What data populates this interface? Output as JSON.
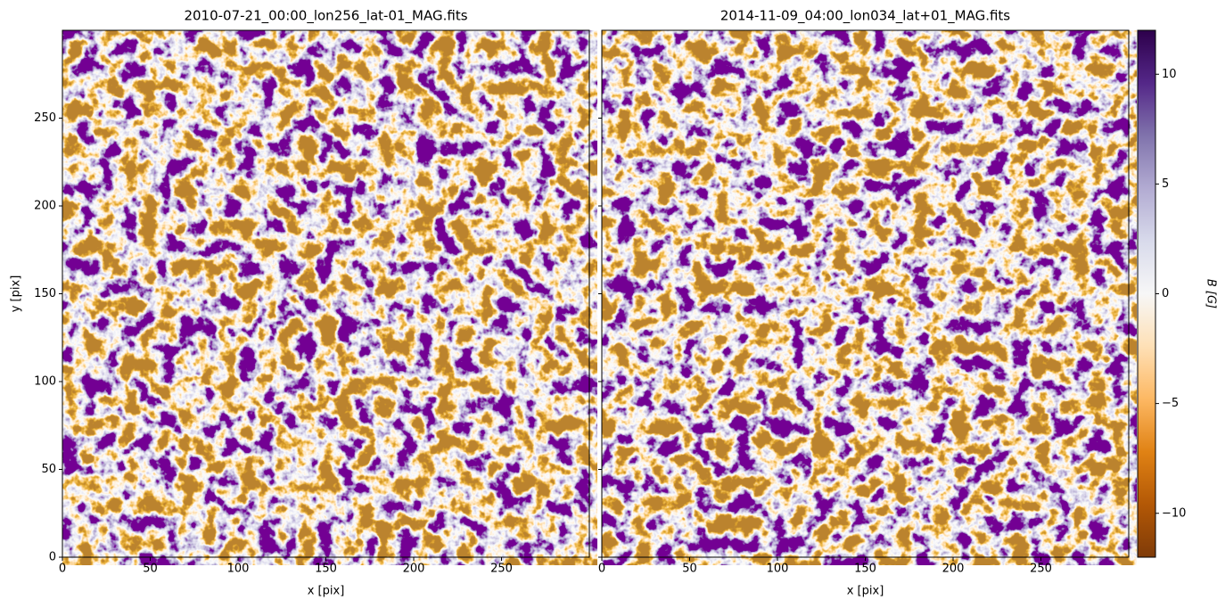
{
  "chart_data": [
    {
      "type": "heatmap",
      "title": "2010-07-21_00:00_lon256_lat-01_MAG.fits",
      "xlabel": "x [pix]",
      "ylabel": "y [pix]",
      "xlim": [
        0,
        300
      ],
      "ylim": [
        0,
        300
      ],
      "xticks": [
        0,
        50,
        100,
        150,
        200,
        250
      ],
      "yticks": [
        0,
        50,
        100,
        150,
        200,
        250
      ],
      "show_yticklabels": true
    },
    {
      "type": "heatmap",
      "title": "2014-11-09_04:00_lon034_lat+01_MAG.fits",
      "xlabel": "x [pix]",
      "xlim": [
        0,
        300
      ],
      "ylim": [
        0,
        300
      ],
      "xticks": [
        0,
        50,
        100,
        150,
        200,
        250
      ],
      "yticks": [
        0,
        50,
        100,
        150,
        200,
        250
      ],
      "show_yticklabels": false
    }
  ],
  "colorbar": {
    "label": "B [G]",
    "lim": [
      -12,
      12
    ],
    "ticks": [
      {
        "value": -10,
        "label": "−10"
      },
      {
        "value": -5,
        "label": "−5"
      },
      0,
      5,
      10
    ],
    "colormap": [
      "#7f3b08",
      "#b35806",
      "#e08214",
      "#fdb863",
      "#fee0b6",
      "#f7f7f7",
      "#d8daeb",
      "#b2abd2",
      "#8073ac",
      "#542788",
      "#2d004b"
    ]
  }
}
